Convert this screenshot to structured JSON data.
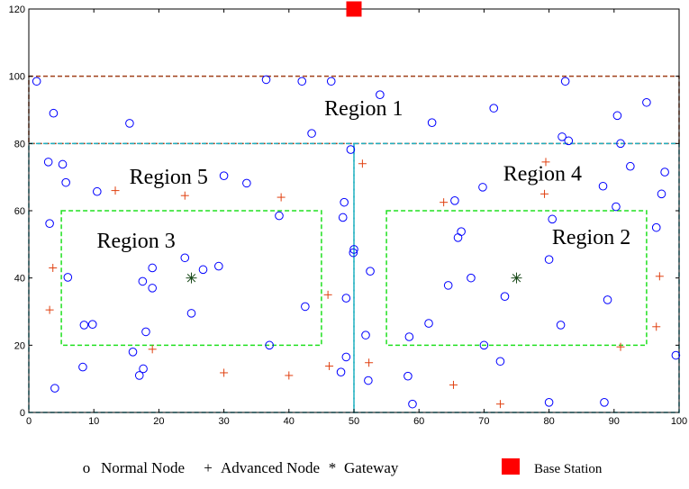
{
  "chart_data": {
    "type": "scatter",
    "xlim": [
      0,
      100
    ],
    "ylim": [
      0,
      120
    ],
    "x_ticks": [
      0,
      10,
      20,
      30,
      40,
      50,
      60,
      70,
      80,
      90,
      100
    ],
    "y_ticks": [
      0,
      20,
      40,
      60,
      80,
      100,
      120
    ],
    "grid": false,
    "legend_placement": "bottom",
    "colors": {
      "normal": "#0000ff",
      "advanced": "#e04010",
      "gateway": "#1a4a1a",
      "base_station": "#ff0000",
      "region1_border": "#a0401a",
      "region45_border": "#20b0c0",
      "region23_border": "#20e020"
    },
    "regions": [
      {
        "label": "Region 1",
        "x": [
          0,
          100
        ],
        "y": [
          80,
          100
        ],
        "label_at": [
          51.5,
          89.8
        ],
        "color": "region1_border"
      },
      {
        "label": "Region 5",
        "x": [
          0,
          50
        ],
        "y": [
          0,
          80
        ],
        "label_at": [
          21.5,
          69.5
        ],
        "color": "region45_border"
      },
      {
        "label": "Region 4",
        "x": [
          50,
          100
        ],
        "y": [
          0,
          80
        ],
        "label_at": [
          79,
          70.5
        ],
        "color": "region45_border"
      },
      {
        "label": "Region 3",
        "x": [
          5,
          45
        ],
        "y": [
          20,
          60
        ],
        "label_at": [
          16.5,
          50.5
        ],
        "color": "region23_border"
      },
      {
        "label": "Region 2",
        "x": [
          55,
          95
        ],
        "y": [
          20,
          60
        ],
        "label_at": [
          86.5,
          51.5
        ],
        "color": "region23_border"
      }
    ],
    "series": [
      {
        "name": "Normal Node",
        "marker": "o",
        "points": [
          [
            1.2,
            98.5
          ],
          [
            3.8,
            89
          ],
          [
            15.5,
            86
          ],
          [
            36.5,
            99
          ],
          [
            42,
            98.5
          ],
          [
            46.5,
            98.5
          ],
          [
            54,
            94.5
          ],
          [
            43.5,
            83
          ],
          [
            62,
            86.2
          ],
          [
            71.5,
            90.5
          ],
          [
            82.5,
            98.5
          ],
          [
            90.5,
            88.3
          ],
          [
            95,
            92.2
          ],
          [
            3,
            74.5
          ],
          [
            5.2,
            73.8
          ],
          [
            5.7,
            68.4
          ],
          [
            10.5,
            65.7
          ],
          [
            30,
            70.4
          ],
          [
            33.5,
            68.2
          ],
          [
            49.5,
            78.2
          ],
          [
            3.2,
            56.2
          ],
          [
            6,
            40.2
          ],
          [
            8.5,
            26
          ],
          [
            9.8,
            26.2
          ],
          [
            8.3,
            13.5
          ],
          [
            4,
            7.2
          ],
          [
            16,
            18
          ],
          [
            17,
            11
          ],
          [
            17.6,
            13
          ],
          [
            17.5,
            39
          ],
          [
            18,
            24
          ],
          [
            19,
            43
          ],
          [
            19,
            37
          ],
          [
            24,
            46
          ],
          [
            25,
            29.5
          ],
          [
            26.8,
            42.5
          ],
          [
            29.2,
            43.5
          ],
          [
            37,
            20
          ],
          [
            38.5,
            58.5
          ],
          [
            42.5,
            31.5
          ],
          [
            48.5,
            62.5
          ],
          [
            48.3,
            58
          ],
          [
            48.8,
            34
          ],
          [
            48.8,
            16.5
          ],
          [
            48,
            12
          ],
          [
            49.9,
            47.5
          ],
          [
            50,
            48.5
          ],
          [
            52.5,
            42
          ],
          [
            51.8,
            23
          ],
          [
            52.2,
            9.5
          ],
          [
            58.3,
            10.8
          ],
          [
            58.5,
            22.5
          ],
          [
            59,
            2.5
          ],
          [
            61.5,
            26.5
          ],
          [
            64.5,
            37.8
          ],
          [
            65.5,
            63
          ],
          [
            66,
            52
          ],
          [
            66.5,
            53.8
          ],
          [
            68,
            40
          ],
          [
            69.8,
            67
          ],
          [
            70,
            20
          ],
          [
            72.5,
            15.2
          ],
          [
            73.2,
            34.5
          ],
          [
            80,
            3
          ],
          [
            80,
            45.5
          ],
          [
            80.5,
            57.5
          ],
          [
            81.8,
            26
          ],
          [
            82,
            82
          ],
          [
            83,
            80.8
          ],
          [
            88.3,
            67.3
          ],
          [
            88.5,
            3
          ],
          [
            89,
            33.5
          ],
          [
            90.3,
            61.2
          ],
          [
            91,
            80
          ],
          [
            92.5,
            73.2
          ],
          [
            96.5,
            55
          ],
          [
            97.3,
            65
          ],
          [
            97.8,
            71.5
          ],
          [
            99.5,
            17
          ]
        ]
      },
      {
        "name": "Advanced Node",
        "marker": "+",
        "points": [
          [
            13.3,
            66
          ],
          [
            24,
            64.5
          ],
          [
            38.8,
            64
          ],
          [
            3.7,
            43
          ],
          [
            3.2,
            30.5
          ],
          [
            19,
            18.8
          ],
          [
            30,
            11.8
          ],
          [
            40,
            11
          ],
          [
            46,
            35
          ],
          [
            46.2,
            13.8
          ],
          [
            51.3,
            74
          ],
          [
            52.3,
            14.8
          ],
          [
            63.8,
            62.5
          ],
          [
            65.3,
            8.2
          ],
          [
            72.5,
            2.5
          ],
          [
            79.3,
            65
          ],
          [
            79.5,
            74.5
          ],
          [
            91,
            19.5
          ],
          [
            96.5,
            25.5
          ],
          [
            97,
            40.5
          ]
        ]
      },
      {
        "name": "Gateway",
        "marker": "*",
        "points": [
          [
            25,
            40
          ],
          [
            75,
            40
          ]
        ]
      },
      {
        "name": "Base Station",
        "marker": "square",
        "points": [
          [
            50,
            120
          ]
        ]
      }
    ],
    "legend": [
      {
        "symbol": "o",
        "label": "Normal Node"
      },
      {
        "symbol": "+",
        "label": "Advanced Node"
      },
      {
        "symbol": "*",
        "label": "Gateway"
      },
      {
        "symbol": "square",
        "label": "Base Station"
      }
    ]
  }
}
